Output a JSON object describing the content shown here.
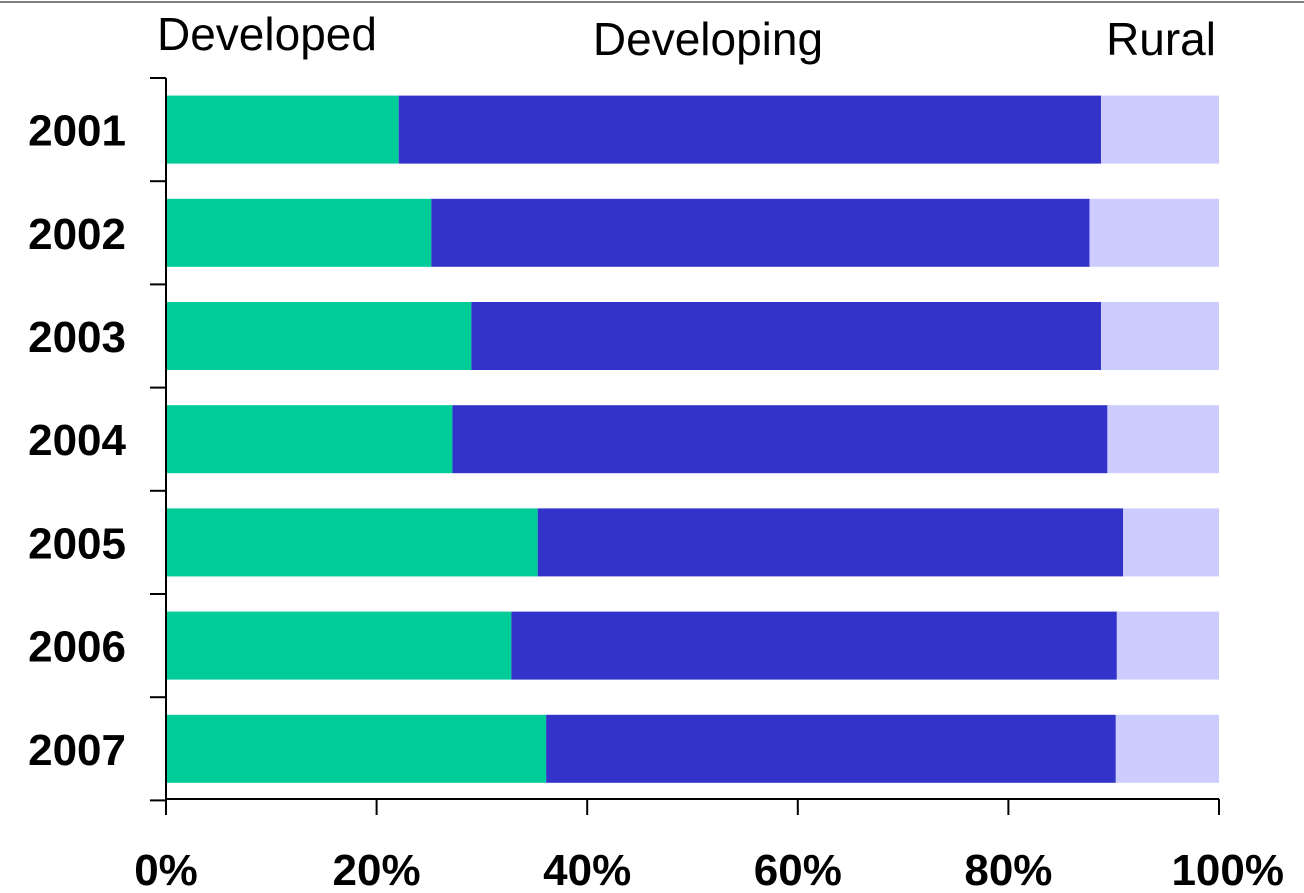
{
  "chart_data": {
    "type": "bar",
    "orientation": "horizontal",
    "stacked": true,
    "categories": [
      "2001",
      "2002",
      "2003",
      "2004",
      "2005",
      "2006",
      "2007"
    ],
    "series": [
      {
        "name": "Developed",
        "color": "#00CC99",
        "values": [
          22.1,
          25.2,
          29.0,
          27.2,
          35.3,
          32.8,
          36.1
        ]
      },
      {
        "name": "Developing",
        "color": "#3333CC",
        "values": [
          66.7,
          62.5,
          59.8,
          62.2,
          55.6,
          57.5,
          54.1
        ]
      },
      {
        "name": "Rural",
        "color": "#CCCCFF",
        "values": [
          11.2,
          12.3,
          11.2,
          10.6,
          9.1,
          9.7,
          9.8
        ]
      }
    ],
    "xticks": [
      "0%",
      "20%",
      "40%",
      "60%",
      "80%",
      "100%"
    ],
    "xlim": [
      0,
      100
    ],
    "legend_position": "top",
    "grid": false
  }
}
